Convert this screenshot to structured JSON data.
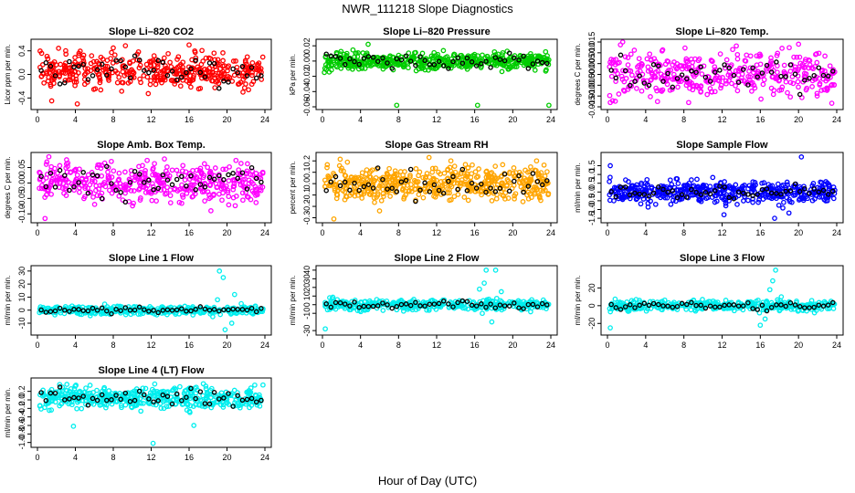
{
  "figure": {
    "title": "NWR_111218  Slope Diagnostics",
    "xlabel": "Hour of Day (UTC)"
  },
  "chart_data": [
    {
      "type": "scatter",
      "title": "Slope Li–820 CO2",
      "ylabel": "Licor ppm per min.",
      "xlim": [
        0,
        24
      ],
      "xticks": [
        0,
        4,
        8,
        12,
        16,
        20,
        24
      ],
      "xtick_labels": [
        "0",
        "4",
        "8",
        "12",
        "16",
        "20",
        "24"
      ],
      "ylim": [
        -0.55,
        0.55
      ],
      "yticks": [
        -0.4,
        0,
        0.4
      ],
      "ytick_labels": [
        "-0.4",
        "0.0",
        "0.4"
      ],
      "color": "#ff0000",
      "center": 0.05,
      "spread": 0.15,
      "count": 420,
      "outliers": [
        [
          4.2,
          -0.5
        ],
        [
          16.0,
          0.5
        ],
        [
          1.5,
          -0.45
        ],
        [
          8.0,
          0.45
        ]
      ]
    },
    {
      "type": "scatter",
      "title": "Slope Li–820 Pressure",
      "ylabel": "kPa per min.",
      "xlim": [
        0,
        24
      ],
      "xticks": [
        0,
        4,
        8,
        12,
        16,
        20,
        24
      ],
      "xtick_labels": [
        "0",
        "4",
        "8",
        "12",
        "16",
        "20",
        "24"
      ],
      "ylim": [
        -0.06,
        0.025
      ],
      "yticks": [
        -0.06,
        -0.04,
        -0.02,
        0,
        0.02
      ],
      "ytick_labels": [
        "-0.06",
        "-0.04",
        "-0.02",
        "0.00",
        "0.02"
      ],
      "color": "#00cc00",
      "center": 0.0,
      "spread": 0.0055,
      "count": 500,
      "outliers": [
        [
          4.8,
          0.022
        ],
        [
          7.8,
          -0.058
        ],
        [
          16.3,
          -0.058
        ],
        [
          23.8,
          -0.058
        ],
        [
          0.2,
          -0.015
        ]
      ]
    },
    {
      "type": "scatter",
      "title": "Slope Li–820 Temp.",
      "ylabel": "degrees C per min.",
      "xlim": [
        0,
        24
      ],
      "xticks": [
        0,
        4,
        8,
        12,
        16,
        20,
        24
      ],
      "xtick_labels": [
        "0",
        "4",
        "8",
        "12",
        "16",
        "20",
        "24"
      ],
      "ylim": [
        -0.015,
        0.015
      ],
      "yticks": [
        -0.015,
        -0.01,
        -0.005,
        0,
        0.005,
        0.01,
        0.015
      ],
      "ytick_labels": [
        "-0.015",
        "-0.010",
        "-0.005",
        "0.000",
        "0.005",
        "0.010",
        "0.015"
      ],
      "color": "#ff00ff",
      "center": 0.0,
      "spread": 0.005,
      "count": 400,
      "outliers": [
        [
          1.6,
          0.015
        ],
        [
          0.3,
          -0.013
        ],
        [
          8.5,
          -0.013
        ],
        [
          20.0,
          0.014
        ]
      ]
    },
    {
      "type": "scatter",
      "title": "Slope Amb. Box Temp.",
      "ylabel": "degrees C per min.",
      "xlim": [
        0,
        24
      ],
      "xticks": [
        0,
        4,
        8,
        12,
        16,
        20,
        24
      ],
      "xtick_labels": [
        "0",
        "4",
        "8",
        "12",
        "16",
        "20",
        "24"
      ],
      "ylim": [
        -0.12,
        0.09
      ],
      "yticks": [
        -0.1,
        -0.05,
        0,
        0.05
      ],
      "ytick_labels": [
        "-0.10",
        "-0.05",
        "0.00",
        "0.05"
      ],
      "color": "#ff00ff",
      "center": 0.0,
      "spread": 0.03,
      "count": 420,
      "outliers": [
        [
          0.8,
          -0.115
        ],
        [
          1.2,
          0.085
        ],
        [
          18.3,
          -0.09
        ],
        [
          7.8,
          0.07
        ]
      ]
    },
    {
      "type": "scatter",
      "title": "Slope Gas Stream RH",
      "ylabel": "percent per min.",
      "xlim": [
        0,
        24
      ],
      "xticks": [
        0,
        4,
        8,
        12,
        16,
        20,
        24
      ],
      "xtick_labels": [
        "0",
        "4",
        "8",
        "12",
        "16",
        "20",
        "24"
      ],
      "ylim": [
        -0.32,
        0.25
      ],
      "yticks": [
        -0.3,
        -0.2,
        -0.1,
        0,
        0.1,
        0.2
      ],
      "ytick_labels": [
        "-0.3",
        "-0.2",
        "-0.1",
        "0.0",
        "0.1",
        "0.2"
      ],
      "color": "#ffa500",
      "center": 0.0,
      "spread": 0.07,
      "count": 520,
      "outliers": [
        [
          1.2,
          -0.31
        ],
        [
          11.2,
          0.23
        ],
        [
          13.5,
          0.2
        ],
        [
          22.5,
          0.2
        ],
        [
          6.0,
          -0.24
        ]
      ]
    },
    {
      "type": "scatter",
      "title": "Slope Sample Flow",
      "ylabel": "ml/min per min.",
      "xlim": [
        0,
        24
      ],
      "xticks": [
        0,
        4,
        8,
        12,
        16,
        20,
        24
      ],
      "xtick_labels": [
        "0",
        "4",
        "8",
        "12",
        "16",
        "20",
        "24"
      ],
      "ylim": [
        -1.6,
        2.1
      ],
      "yticks": [
        -1.5,
        -1,
        -0.5,
        0,
        0.5,
        1,
        1.5
      ],
      "ytick_labels": [
        "-1.5",
        "-1.0",
        "-0.5",
        "0.0",
        "0.5",
        "1.0",
        "1.5"
      ],
      "color": "#0000ff",
      "center": 0.0,
      "spread": 0.3,
      "count": 460,
      "outliers": [
        [
          0.3,
          1.5
        ],
        [
          20.3,
          2.0
        ],
        [
          12.2,
          -1.3
        ],
        [
          17.5,
          -1.5
        ],
        [
          19.0,
          -1.2
        ]
      ]
    },
    {
      "type": "scatter",
      "title": "Slope Line 1 Flow",
      "ylabel": "ml/min per min.",
      "xlim": [
        0,
        24
      ],
      "xticks": [
        0,
        4,
        8,
        12,
        16,
        20,
        24
      ],
      "xtick_labels": [
        "0",
        "4",
        "8",
        "12",
        "16",
        "20",
        "24"
      ],
      "ylim": [
        -17,
        32
      ],
      "yticks": [
        -10,
        0,
        10,
        20,
        30
      ],
      "ytick_labels": [
        "-10",
        "0",
        "10",
        "20",
        "30"
      ],
      "color": "#00eeee",
      "center": 0.0,
      "spread": 1.6,
      "count": 380,
      "outliers": [
        [
          19.2,
          30
        ],
        [
          19.6,
          25
        ],
        [
          19.0,
          8
        ],
        [
          18.5,
          -5
        ],
        [
          20.5,
          -10
        ],
        [
          21.5,
          5
        ],
        [
          19.8,
          -15
        ],
        [
          20.8,
          12
        ]
      ]
    },
    {
      "type": "scatter",
      "title": "Slope Line 2 Flow",
      "ylabel": "ml/min per min.",
      "xlim": [
        0,
        24
      ],
      "xticks": [
        0,
        4,
        8,
        12,
        16,
        20,
        24
      ],
      "xtick_labels": [
        "0",
        "4",
        "8",
        "12",
        "16",
        "20",
        "24"
      ],
      "ylim": [
        -32,
        42
      ],
      "yticks": [
        -30,
        -10,
        0,
        10,
        20,
        30,
        40
      ],
      "ytick_labels": [
        "-30",
        "-10",
        "0",
        "10",
        "20",
        "30",
        "40"
      ],
      "color": "#00eeee",
      "center": 0.0,
      "spread": 3.0,
      "count": 380,
      "outliers": [
        [
          17.2,
          40
        ],
        [
          18.2,
          40
        ],
        [
          17.0,
          25
        ],
        [
          16.8,
          -10
        ],
        [
          17.8,
          -20
        ],
        [
          0.3,
          -28
        ],
        [
          18.8,
          15
        ],
        [
          16.5,
          18
        ]
      ]
    },
    {
      "type": "scatter",
      "title": "Slope Line 3 Flow",
      "ylabel": "ml/min per min.",
      "xlim": [
        0,
        24
      ],
      "xticks": [
        0,
        4,
        8,
        12,
        16,
        20,
        24
      ],
      "xtick_labels": [
        "0",
        "4",
        "8",
        "12",
        "16",
        "20",
        "24"
      ],
      "ylim": [
        -30,
        42
      ],
      "yticks": [
        -20,
        0,
        20
      ],
      "ytick_labels": [
        "-20",
        "0",
        "20"
      ],
      "color": "#00eeee",
      "center": 0.0,
      "spread": 3.0,
      "count": 380,
      "outliers": [
        [
          17.6,
          40
        ],
        [
          17.3,
          28
        ],
        [
          17.0,
          18
        ],
        [
          16.5,
          -15
        ],
        [
          0.3,
          -25
        ],
        [
          18.2,
          10
        ],
        [
          16.0,
          -22
        ]
      ]
    },
    {
      "type": "scatter",
      "title": "Slope Line 4 (LT) Flow",
      "ylabel": "ml/min per min.",
      "xlim": [
        0,
        24
      ],
      "xticks": [
        0,
        4,
        8,
        12,
        16,
        20,
        24
      ],
      "xtick_labels": [
        "0",
        "4",
        "8",
        "12",
        "16",
        "20",
        "24"
      ],
      "ylim": [
        -1.05,
        0.45
      ],
      "yticks": [
        -1,
        -0.8,
        -0.6,
        -0.4,
        -0.2,
        0,
        0.2
      ],
      "ytick_labels": [
        "-1.0",
        "-0.8",
        "-0.6",
        "-0.4",
        "-0.2",
        "0.0",
        "0.2"
      ],
      "color": "#00eeee",
      "center": 0.05,
      "spread": 0.13,
      "count": 460,
      "outliers": [
        [
          12.2,
          -1.02
        ],
        [
          3.8,
          -0.62
        ],
        [
          16.5,
          -0.6
        ],
        [
          23.8,
          0.35
        ],
        [
          17.5,
          0.38
        ]
      ]
    }
  ]
}
